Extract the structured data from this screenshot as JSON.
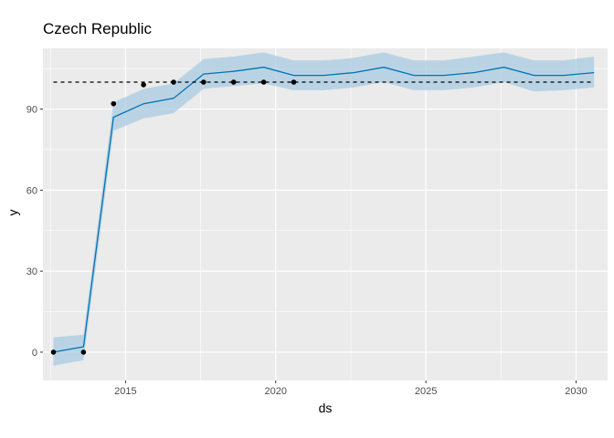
{
  "chart_data": {
    "type": "line",
    "title": "Czech Republic",
    "xlabel": "ds",
    "ylabel": "y",
    "xlim": [
      2012.25,
      2031.05
    ],
    "ylim": [
      -10.5,
      112.5
    ],
    "x_ticks": [
      2015,
      2020,
      2025,
      2030
    ],
    "y_ticks": [
      0,
      30,
      60,
      90
    ],
    "grid": true,
    "colors": {
      "panel_background": "#ebebeb",
      "grid": "#ffffff",
      "forecast_line": "#0072b2",
      "interval_band": "#a9cbe2",
      "points": "#000000",
      "cap_line": "#000000"
    },
    "cap": 100,
    "observed": {
      "x": [
        2012.6,
        2013.6,
        2014.6,
        2015.6,
        2016.6,
        2017.6,
        2018.6,
        2019.6,
        2020.6
      ],
      "y": [
        0,
        0,
        92,
        99,
        100,
        100,
        100,
        100,
        100
      ]
    },
    "forecast": {
      "x": [
        2012.6,
        2013.6,
        2014.6,
        2015.6,
        2016.6,
        2017.6,
        2018.6,
        2019.6,
        2020.6,
        2021.6,
        2022.6,
        2023.6,
        2024.6,
        2025.6,
        2026.6,
        2027.6,
        2028.6,
        2029.6,
        2030.6
      ],
      "yhat": [
        0,
        2,
        87,
        92,
        94,
        103,
        104,
        105.5,
        102.5,
        102.5,
        103.5,
        105.5,
        102.5,
        102.5,
        103.5,
        105.5,
        102.5,
        102.5,
        103.5
      ],
      "lower": [
        -5,
        -3,
        82,
        86.5,
        88.5,
        97.5,
        98.5,
        99.5,
        97,
        97,
        98,
        100,
        97,
        97,
        98,
        100,
        96.5,
        97,
        98
      ],
      "upper": [
        5.5,
        6.5,
        92.5,
        97.5,
        99.5,
        108.5,
        109.5,
        111,
        108,
        108,
        109,
        111,
        108,
        108,
        109.5,
        111,
        108,
        108,
        109.5
      ]
    }
  }
}
